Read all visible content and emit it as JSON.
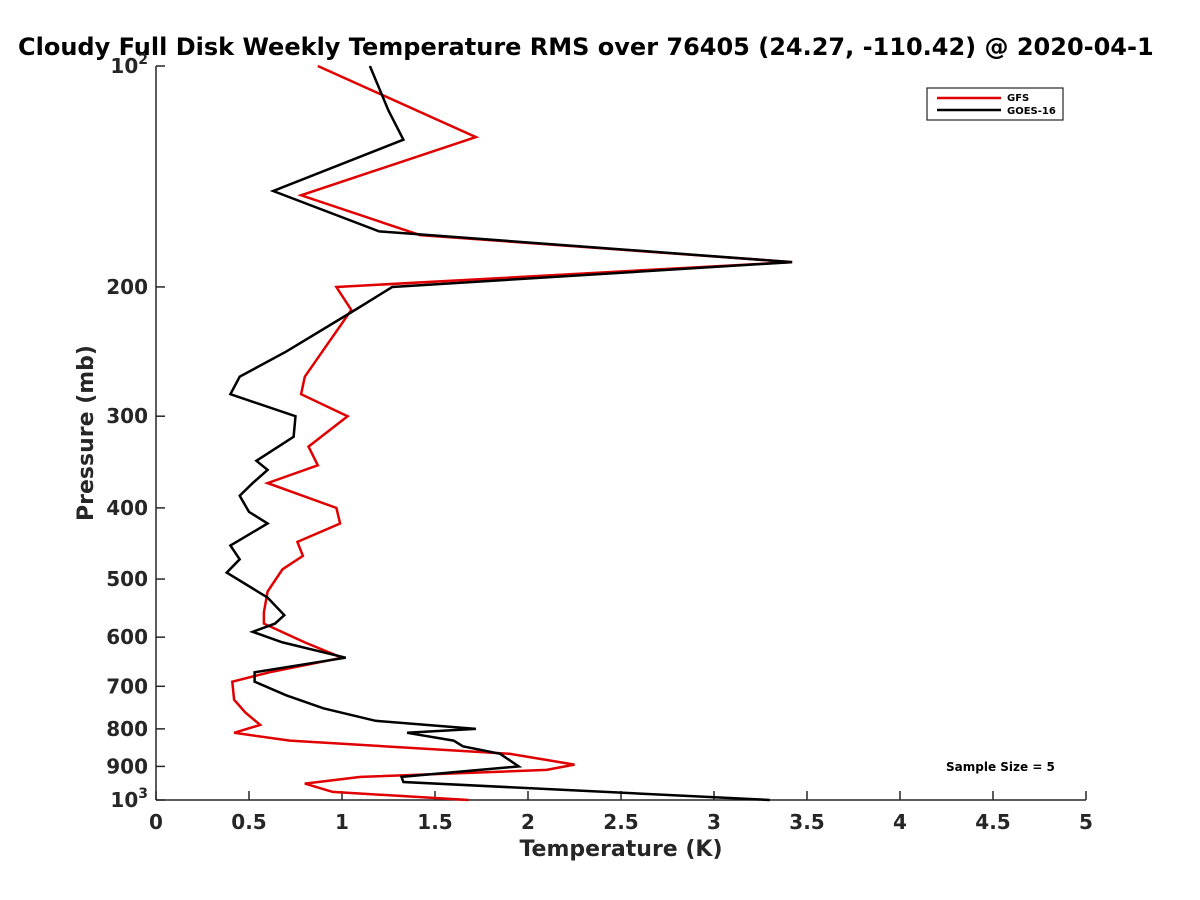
{
  "chart_data": {
    "type": "line",
    "title": "Cloudy Full Disk Weekly Temperature RMS over 76405 (24.27, -110.42) @ 2020-04-1",
    "xlabel": "Temperature (K)",
    "ylabel": "Pressure (mb)",
    "xlim": [
      0,
      5
    ],
    "ylim": [
      100,
      1000
    ],
    "yscale": "log",
    "y_reversed": true,
    "grid": false,
    "legend_position": "top-right",
    "x_ticks": [
      0,
      0.5,
      1,
      1.5,
      2,
      2.5,
      3,
      3.5,
      4,
      4.5,
      5
    ],
    "x_tick_labels": [
      "0",
      "0.5",
      "1",
      "1.5",
      "2",
      "2.5",
      "3",
      "3.5",
      "4",
      "4.5",
      "5"
    ],
    "y_ticks": [
      {
        "value": 100,
        "base": "10",
        "exp": "2"
      },
      {
        "value": 200,
        "label": "200"
      },
      {
        "value": 300,
        "label": "300"
      },
      {
        "value": 400,
        "label": "400"
      },
      {
        "value": 500,
        "label": "500"
      },
      {
        "value": 600,
        "label": "600"
      },
      {
        "value": 700,
        "label": "700"
      },
      {
        "value": 800,
        "label": "800"
      },
      {
        "value": 900,
        "label": "900"
      },
      {
        "value": 1000,
        "base": "10",
        "exp": "3"
      }
    ],
    "series": [
      {
        "name": "GFS",
        "color": "#e00000",
        "points": [
          {
            "x": 0.87,
            "p": 100
          },
          {
            "x": 1.72,
            "p": 125
          },
          {
            "x": 0.78,
            "p": 150
          },
          {
            "x": 1.42,
            "p": 170
          },
          {
            "x": 3.42,
            "p": 185
          },
          {
            "x": 0.97,
            "p": 200
          },
          {
            "x": 1.05,
            "p": 215
          },
          {
            "x": 0.8,
            "p": 265
          },
          {
            "x": 0.78,
            "p": 280
          },
          {
            "x": 1.03,
            "p": 300
          },
          {
            "x": 0.82,
            "p": 330
          },
          {
            "x": 0.87,
            "p": 350
          },
          {
            "x": 0.6,
            "p": 370
          },
          {
            "x": 0.97,
            "p": 400
          },
          {
            "x": 0.99,
            "p": 420
          },
          {
            "x": 0.76,
            "p": 445
          },
          {
            "x": 0.79,
            "p": 465
          },
          {
            "x": 0.68,
            "p": 485
          },
          {
            "x": 0.6,
            "p": 520
          },
          {
            "x": 0.58,
            "p": 555
          },
          {
            "x": 0.58,
            "p": 575
          },
          {
            "x": 0.8,
            "p": 610
          },
          {
            "x": 1.0,
            "p": 640
          },
          {
            "x": 0.61,
            "p": 670
          },
          {
            "x": 0.41,
            "p": 690
          },
          {
            "x": 0.42,
            "p": 730
          },
          {
            "x": 0.48,
            "p": 760
          },
          {
            "x": 0.56,
            "p": 790
          },
          {
            "x": 0.42,
            "p": 810
          },
          {
            "x": 0.72,
            "p": 830
          },
          {
            "x": 1.9,
            "p": 865
          },
          {
            "x": 2.25,
            "p": 895
          },
          {
            "x": 2.1,
            "p": 910
          },
          {
            "x": 1.1,
            "p": 930
          },
          {
            "x": 0.8,
            "p": 950
          },
          {
            "x": 0.95,
            "p": 975
          },
          {
            "x": 1.68,
            "p": 1000
          }
        ]
      },
      {
        "name": "GOES-16",
        "color": "#000000",
        "points": [
          {
            "x": 1.15,
            "p": 100
          },
          {
            "x": 1.25,
            "p": 115
          },
          {
            "x": 1.33,
            "p": 126
          },
          {
            "x": 0.63,
            "p": 148
          },
          {
            "x": 1.2,
            "p": 168
          },
          {
            "x": 3.42,
            "p": 185
          },
          {
            "x": 1.27,
            "p": 200
          },
          {
            "x": 1.07,
            "p": 215
          },
          {
            "x": 0.7,
            "p": 245
          },
          {
            "x": 0.45,
            "p": 265
          },
          {
            "x": 0.4,
            "p": 280
          },
          {
            "x": 0.75,
            "p": 300
          },
          {
            "x": 0.74,
            "p": 320
          },
          {
            "x": 0.54,
            "p": 345
          },
          {
            "x": 0.6,
            "p": 355
          },
          {
            "x": 0.52,
            "p": 370
          },
          {
            "x": 0.45,
            "p": 385
          },
          {
            "x": 0.5,
            "p": 405
          },
          {
            "x": 0.6,
            "p": 420
          },
          {
            "x": 0.4,
            "p": 450
          },
          {
            "x": 0.45,
            "p": 470
          },
          {
            "x": 0.38,
            "p": 490
          },
          {
            "x": 0.6,
            "p": 530
          },
          {
            "x": 0.69,
            "p": 560
          },
          {
            "x": 0.64,
            "p": 575
          },
          {
            "x": 0.52,
            "p": 590
          },
          {
            "x": 0.68,
            "p": 610
          },
          {
            "x": 1.02,
            "p": 640
          },
          {
            "x": 0.53,
            "p": 670
          },
          {
            "x": 0.53,
            "p": 690
          },
          {
            "x": 0.7,
            "p": 720
          },
          {
            "x": 0.9,
            "p": 750
          },
          {
            "x": 1.18,
            "p": 780
          },
          {
            "x": 1.72,
            "p": 800
          },
          {
            "x": 1.35,
            "p": 810
          },
          {
            "x": 1.6,
            "p": 830
          },
          {
            "x": 1.65,
            "p": 845
          },
          {
            "x": 1.85,
            "p": 865
          },
          {
            "x": 1.95,
            "p": 900
          },
          {
            "x": 1.32,
            "p": 930
          },
          {
            "x": 1.33,
            "p": 945
          },
          {
            "x": 3.3,
            "p": 1000
          }
        ]
      }
    ],
    "annotation": "Sample Size = 5"
  }
}
